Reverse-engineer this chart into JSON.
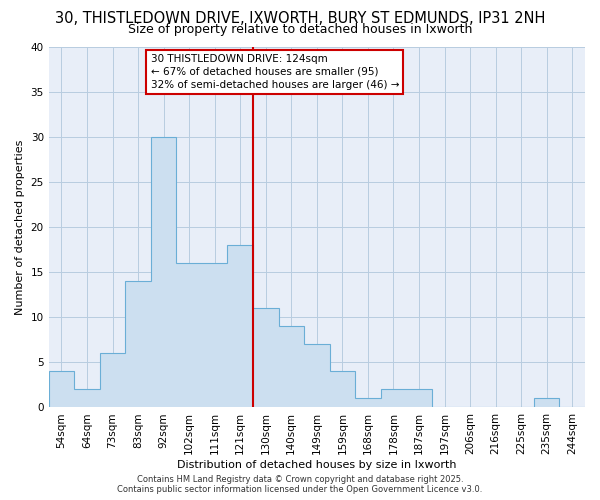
{
  "title": "30, THISTLEDOWN DRIVE, IXWORTH, BURY ST EDMUNDS, IP31 2NH",
  "subtitle": "Size of property relative to detached houses in Ixworth",
  "xlabel": "Distribution of detached houses by size in Ixworth",
  "ylabel": "Number of detached properties",
  "bin_labels": [
    "54sqm",
    "64sqm",
    "73sqm",
    "83sqm",
    "92sqm",
    "102sqm",
    "111sqm",
    "121sqm",
    "130sqm",
    "140sqm",
    "149sqm",
    "159sqm",
    "168sqm",
    "178sqm",
    "187sqm",
    "197sqm",
    "206sqm",
    "216sqm",
    "225sqm",
    "235sqm",
    "244sqm"
  ],
  "bin_values": [
    4,
    2,
    6,
    14,
    30,
    16,
    16,
    18,
    11,
    9,
    7,
    4,
    1,
    2,
    2,
    0,
    0,
    0,
    0,
    1,
    0
  ],
  "bar_color": "#ccdff0",
  "bar_edge_color": "#6aaed6",
  "vline_x_index": 7.5,
  "vline_color": "#cc0000",
  "ylim": [
    0,
    40
  ],
  "annotation_text": "30 THISTLEDOWN DRIVE: 124sqm\n← 67% of detached houses are smaller (95)\n32% of semi-detached houses are larger (46) →",
  "footer_text": "Contains HM Land Registry data © Crown copyright and database right 2025.\nContains public sector information licensed under the Open Government Licence v3.0.",
  "bg_color": "#ffffff",
  "plot_bg_color": "#e8eef8",
  "grid_color": "#b8cce0",
  "title_fontsize": 10.5,
  "subtitle_fontsize": 9,
  "axis_label_fontsize": 8,
  "tick_fontsize": 7.5,
  "annotation_fontsize": 7.5,
  "footer_fontsize": 6
}
